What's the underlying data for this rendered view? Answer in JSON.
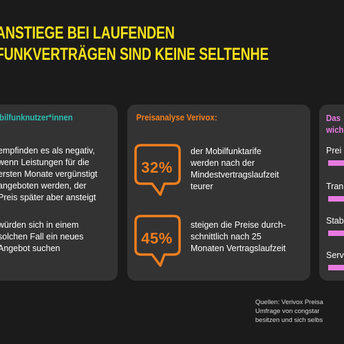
{
  "headline": {
    "line1": "ANSTIEGE BEI LAUFENDEN",
    "line2": "FUNKVERTRÄGEN SIND KEINE SELTENHE"
  },
  "card_left": {
    "title": "obilfunknutzer*innen",
    "stat1_lines": [
      "empfinden es als negativ,",
      "wenn Leistungen für die",
      "ersten Monate vergünstigt",
      "angeboten werden, der",
      "Preis später aber ansteigt"
    ],
    "stat2_lines": [
      "würden sich in einem",
      "solchen Fall ein neues",
      "Angebot suchen"
    ]
  },
  "card_mid": {
    "title": "Preisanalyse Verivox:",
    "stats": [
      {
        "value": "32%",
        "lines": [
          "der Mobilfunktarife",
          "werden nach der",
          "Mindestvertragslaufzeit",
          "teurer"
        ]
      },
      {
        "value": "45%",
        "lines": [
          "steigen die Preise durch-",
          "schnittlich nach 25",
          "Monaten Vertragslaufzeit"
        ]
      }
    ]
  },
  "card_right": {
    "title_lines": [
      "Das",
      "wich"
    ],
    "items": [
      "Prei",
      "Tran",
      "Stab",
      "Serv"
    ]
  },
  "source_lines": [
    "Quellen: Verivox Preisa",
    "Umfrage von congstar",
    "besitzen und sich selbs"
  ],
  "colors": {
    "background": "#1b1b1c",
    "card": "#333334",
    "headline": "#f7e21b",
    "teal": "#2bbcb0",
    "orange": "#f07f1e",
    "pink": "#e77ae0"
  }
}
